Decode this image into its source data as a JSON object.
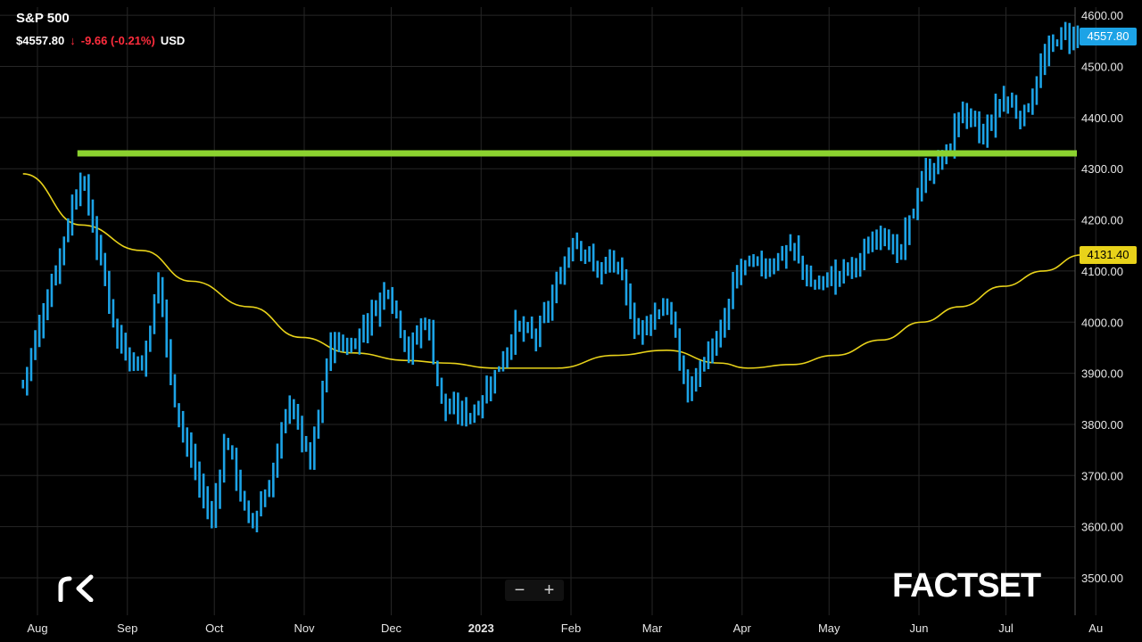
{
  "header": {
    "title": "S&P 500",
    "price": "$4557.80",
    "arrow": "↓",
    "change": "-9.66 (-0.21%)",
    "currency": "USD"
  },
  "price_tags": {
    "last": "4557.80",
    "ma": "4131.40"
  },
  "branding": {
    "left_logo": "rk-logo-icon",
    "right_logo": "FACTSET"
  },
  "zoom": {
    "minus": "−",
    "plus": "+"
  },
  "colors": {
    "background": "#000000",
    "bars": "#1ca3e6",
    "moving_average": "#e8d21a",
    "resistance": "#8bd22f",
    "grid": "#262626",
    "negative": "#ff2d3d"
  },
  "chart_data": {
    "type": "ohlc",
    "title": "S&P 500",
    "ylim": [
      3470,
      4620
    ],
    "yticks": [
      3500,
      3600,
      3700,
      3800,
      3900,
      4000,
      4100,
      4200,
      4300,
      4400,
      4500,
      4600
    ],
    "ytick_labels": [
      "3500.00",
      "3600.00",
      "3700.00",
      "3800.00",
      "3900.00",
      "4000.00",
      "4100.00",
      "4200.00",
      "4300.00",
      "4400.00",
      "4500.00",
      "4600.00"
    ],
    "xticks": [
      "Aug",
      "Sep",
      "Oct",
      "Nov",
      "Dec",
      "2023",
      "Feb",
      "Mar",
      "Apr",
      "May",
      "Jun",
      "Jul",
      "Au"
    ],
    "grid": true,
    "series": [
      {
        "name": "",
        "kind": "ohlc",
        "path_closes": [
          [
            "2022-07-27",
            3880
          ],
          [
            "2022-08-02",
            4000
          ],
          [
            "2022-08-08",
            4120
          ],
          [
            "2022-08-16",
            4290
          ],
          [
            "2022-08-22",
            4140
          ],
          [
            "2022-08-29",
            3960
          ],
          [
            "2022-09-06",
            3910
          ],
          [
            "2022-09-12",
            4090
          ],
          [
            "2022-09-16",
            3880
          ],
          [
            "2022-09-23",
            3730
          ],
          [
            "2022-09-30",
            3610
          ],
          [
            "2022-10-05",
            3780
          ],
          [
            "2022-10-13",
            3600
          ],
          [
            "2022-10-20",
            3680
          ],
          [
            "2022-10-27",
            3850
          ],
          [
            "2022-11-03",
            3720
          ],
          [
            "2022-11-10",
            3960
          ],
          [
            "2022-11-17",
            3950
          ],
          [
            "2022-11-30",
            4070
          ],
          [
            "2022-12-07",
            3940
          ],
          [
            "2022-12-13",
            4010
          ],
          [
            "2022-12-19",
            3830
          ],
          [
            "2022-12-29",
            3820
          ],
          [
            "2023-01-06",
            3900
          ],
          [
            "2023-01-13",
            3990
          ],
          [
            "2023-01-20",
            3970
          ],
          [
            "2023-01-27",
            4070
          ],
          [
            "2023-02-02",
            4170
          ],
          [
            "2023-02-10",
            4100
          ],
          [
            "2023-02-16",
            4120
          ],
          [
            "2023-02-24",
            3980
          ],
          [
            "2023-03-06",
            4040
          ],
          [
            "2023-03-13",
            3860
          ],
          [
            "2023-03-20",
            3940
          ],
          [
            "2023-03-24",
            3960
          ],
          [
            "2023-03-31",
            4110
          ],
          [
            "2023-04-10",
            4110
          ],
          [
            "2023-04-18",
            4150
          ],
          [
            "2023-04-25",
            4070
          ],
          [
            "2023-05-03",
            4090
          ],
          [
            "2023-05-12",
            4120
          ],
          [
            "2023-05-19",
            4190
          ],
          [
            "2023-05-25",
            4120
          ],
          [
            "2023-06-02",
            4280
          ],
          [
            "2023-06-12",
            4340
          ],
          [
            "2023-06-15",
            4420
          ],
          [
            "2023-06-23",
            4360
          ],
          [
            "2023-06-30",
            4440
          ],
          [
            "2023-07-07",
            4400
          ],
          [
            "2023-07-14",
            4510
          ],
          [
            "2023-07-19",
            4560
          ],
          [
            "2023-07-27",
            4558
          ]
        ]
      },
      {
        "name": "",
        "kind": "moving_average",
        "points": [
          [
            "2022-07-27",
            4290
          ],
          [
            "2022-08-16",
            4190
          ],
          [
            "2022-09-06",
            4140
          ],
          [
            "2022-09-23",
            4080
          ],
          [
            "2022-10-13",
            4030
          ],
          [
            "2022-10-31",
            3970
          ],
          [
            "2022-11-17",
            3940
          ],
          [
            "2022-12-07",
            3925
          ],
          [
            "2022-12-19",
            3920
          ],
          [
            "2023-01-06",
            3910
          ],
          [
            "2023-01-27",
            3910
          ],
          [
            "2023-02-16",
            3935
          ],
          [
            "2023-03-06",
            3945
          ],
          [
            "2023-03-24",
            3920
          ],
          [
            "2023-04-03",
            3910
          ],
          [
            "2023-04-18",
            3917
          ],
          [
            "2023-05-03",
            3935
          ],
          [
            "2023-05-19",
            3965
          ],
          [
            "2023-06-02",
            4000
          ],
          [
            "2023-06-15",
            4030
          ],
          [
            "2023-06-30",
            4070
          ],
          [
            "2023-07-14",
            4100
          ],
          [
            "2023-07-27",
            4131.4
          ]
        ]
      },
      {
        "name": "",
        "kind": "horizontal_line",
        "y": 4330,
        "from": "2022-08-16",
        "to": "2023-07-31"
      }
    ],
    "last_price": 4557.8,
    "last_ma": 4131.4
  }
}
